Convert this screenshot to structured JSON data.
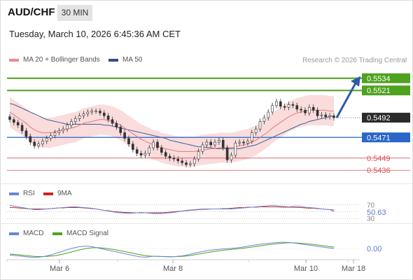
{
  "header": {
    "pair": "AUD/CHF",
    "timeframe": "30 MIN",
    "datetime": "Tuesday, March 10, 2026 6:45:36 AM CET"
  },
  "legend": {
    "ma20": "MA 20 + Bollinger Bands",
    "ma50": "MA 50",
    "rsi": "RSI",
    "ma9": "9MA",
    "macd": "MACD",
    "macd_signal": "MACD Signal"
  },
  "copyright": "Research © 2026 Trading Central",
  "colors": {
    "up": "#2e8b57",
    "down": "#c0392b",
    "candle": "#333333",
    "bollinger_fill": "#f9d6d6",
    "ma20": "#e07a7a",
    "ma50": "#3b5f9c",
    "resistance": "#4ea21f",
    "support": "#2a65c7",
    "minor_level": "#d9545d",
    "price": "#2b2b2b",
    "arrow": "#2e5aa8"
  },
  "chart_data": [
    {
      "type": "candlestick",
      "x_ticks": [
        "Mar 6",
        "Mar 8",
        "Mar 10",
        "Mar 18"
      ],
      "ylim": [
        0.5425,
        0.5545
      ],
      "levels": [
        {
          "value": 0.5534,
          "label": "0.5534",
          "kind": "resistance"
        },
        {
          "value": 0.5521,
          "label": "0.5521",
          "kind": "resistance"
        },
        {
          "value": 0.5471,
          "label": "0.5471",
          "kind": "support"
        },
        {
          "value": 0.5449,
          "label": "0.5449",
          "kind": "minor"
        },
        {
          "value": 0.5436,
          "label": "0.5436",
          "kind": "minor"
        }
      ],
      "last_price": {
        "value": 0.5492,
        "label": "0.5492"
      },
      "close": [
        0.549,
        0.5487,
        0.5484,
        0.5478,
        0.5472,
        0.5466,
        0.5462,
        0.5464,
        0.5467,
        0.547,
        0.5473,
        0.5476,
        0.5478,
        0.548,
        0.5484,
        0.5488,
        0.5491,
        0.5494,
        0.5496,
        0.5498,
        0.5499,
        0.5499,
        0.5497,
        0.5494,
        0.549,
        0.5486,
        0.5482,
        0.5476,
        0.547,
        0.5464,
        0.5458,
        0.5454,
        0.5452,
        0.5454,
        0.546,
        0.5466,
        0.546,
        0.5455,
        0.5451,
        0.5449,
        0.5448,
        0.5446,
        0.5444,
        0.5442,
        0.5443,
        0.5448,
        0.5456,
        0.5463,
        0.5466,
        0.5463,
        0.5466,
        0.5468,
        0.546,
        0.5447,
        0.5452,
        0.5465,
        0.5466,
        0.5465,
        0.5467,
        0.5476,
        0.548,
        0.5488,
        0.5492,
        0.5498,
        0.5505,
        0.5509,
        0.5504,
        0.5503,
        0.5506,
        0.5505,
        0.5501,
        0.55,
        0.5497,
        0.5503,
        0.55,
        0.5494,
        0.5495,
        0.5493,
        0.5494,
        0.5492
      ],
      "ma20": [
        0.5498,
        0.5495,
        0.5492,
        0.5489,
        0.5486,
        0.5482,
        0.5479,
        0.5477,
        0.5476,
        0.5476,
        0.5476,
        0.5477,
        0.5478,
        0.5479,
        0.548,
        0.5481,
        0.5482,
        0.5484,
        0.5486,
        0.5487,
        0.5488,
        0.5489,
        0.549,
        0.549,
        0.5489,
        0.5488,
        0.5486,
        0.5484,
        0.5481,
        0.5478,
        0.5475,
        0.5472,
        0.5469,
        0.5467,
        0.5465,
        0.5463,
        0.5462,
        0.546,
        0.5459,
        0.5458,
        0.5457,
        0.5456,
        0.5456,
        0.5456,
        0.5456,
        0.5456,
        0.5457,
        0.5458,
        0.5458,
        0.5459,
        0.5459,
        0.546,
        0.546,
        0.546,
        0.546,
        0.5461,
        0.5462,
        0.5463,
        0.5464,
        0.5466,
        0.5468,
        0.5471,
        0.5474,
        0.5477,
        0.5481,
        0.5484,
        0.5487,
        0.549,
        0.5493,
        0.5495,
        0.5497,
        0.5498,
        0.5499,
        0.55,
        0.55,
        0.55,
        0.55,
        0.55,
        0.5499,
        0.5499
      ],
      "ma50": [
        0.5507,
        0.5506,
        0.5504,
        0.5502,
        0.55,
        0.5498,
        0.5496,
        0.5494,
        0.5492,
        0.549,
        0.5489,
        0.5488,
        0.5487,
        0.5486,
        0.5485,
        0.5485,
        0.5485,
        0.5485,
        0.5485,
        0.5485,
        0.5485,
        0.5485,
        0.5485,
        0.5484,
        0.5484,
        0.5483,
        0.5482,
        0.5481,
        0.548,
        0.5479,
        0.5478,
        0.5477,
        0.5476,
        0.5475,
        0.5474,
        0.5473,
        0.5472,
        0.5471,
        0.547,
        0.5468,
        0.5467,
        0.5466,
        0.5465,
        0.5464,
        0.5463,
        0.5462,
        0.5461,
        0.5461,
        0.546,
        0.546,
        0.5459,
        0.5459,
        0.5459,
        0.5459,
        0.5459,
        0.5459,
        0.5459,
        0.546,
        0.5461,
        0.5462,
        0.5463,
        0.5465,
        0.5467,
        0.5469,
        0.5471,
        0.5473,
        0.5475,
        0.5477,
        0.5479,
        0.5481,
        0.5483,
        0.5485,
        0.5486,
        0.5488,
        0.5489,
        0.549,
        0.5491,
        0.5492,
        0.5493,
        0.5494
      ],
      "bollinger_width": 0.0016,
      "forecast_arrow": {
        "from": 0.5492,
        "to": 0.5534
      }
    },
    {
      "type": "line",
      "name": "RSI",
      "levels": [
        30,
        50,
        70
      ],
      "value_label": "50.63",
      "ylim": [
        25,
        75
      ],
      "rsi": [
        68,
        66,
        64,
        62,
        60,
        58,
        56,
        56,
        57,
        58,
        59,
        60,
        61,
        62,
        63,
        64,
        64,
        63,
        62,
        61,
        60,
        58,
        56,
        54,
        52,
        50,
        48,
        47,
        46,
        45,
        46,
        47,
        48,
        47,
        46,
        45,
        45,
        45,
        46,
        47,
        48,
        50,
        52,
        54,
        55,
        56,
        57,
        58,
        58,
        58,
        58,
        58,
        58,
        58,
        58,
        59,
        60,
        61,
        62,
        63,
        64,
        65,
        66,
        67,
        68,
        67,
        66,
        65,
        64,
        65,
        66,
        65,
        63,
        62,
        61,
        60,
        58,
        57,
        56,
        51
      ],
      "ma9": [
        62,
        62,
        61,
        60,
        59,
        58,
        58,
        58,
        58,
        58,
        59,
        60,
        61,
        61,
        62,
        62,
        62,
        62,
        61,
        60,
        59,
        58,
        56,
        54,
        53,
        51,
        50,
        49,
        48,
        48,
        47,
        47,
        47,
        47,
        47,
        47,
        47,
        47,
        48,
        49,
        50,
        51,
        52,
        53,
        54,
        55,
        56,
        57,
        57,
        58,
        58,
        58,
        59,
        59,
        60,
        61,
        62,
        62,
        63,
        63,
        63,
        64,
        64,
        64,
        64,
        64,
        63,
        63,
        63,
        63,
        62,
        62,
        61,
        60,
        60,
        59,
        58,
        57,
        56,
        55
      ]
    },
    {
      "type": "line",
      "name": "MACD",
      "value_label": "0.00",
      "ylim": [
        -1,
        1
      ],
      "macd": [
        -0.7,
        -0.75,
        -0.8,
        -0.85,
        -0.9,
        -0.95,
        -0.98,
        -0.95,
        -0.9,
        -0.8,
        -0.7,
        -0.55,
        -0.4,
        -0.25,
        -0.1,
        0.05,
        0.15,
        0.25,
        0.3,
        0.3,
        0.25,
        0.15,
        0.05,
        -0.05,
        -0.15,
        -0.25,
        -0.35,
        -0.45,
        -0.55,
        -0.65,
        -0.75,
        -0.85,
        -0.92,
        -0.95,
        -0.9,
        -0.85,
        -0.85,
        -0.88,
        -0.9,
        -0.92,
        -0.9,
        -0.85,
        -0.8,
        -0.72,
        -0.62,
        -0.5,
        -0.4,
        -0.3,
        -0.22,
        -0.15,
        -0.1,
        -0.05,
        0.0,
        0.02,
        0.05,
        0.1,
        0.15,
        0.22,
        0.3,
        0.38,
        0.45,
        0.52,
        0.58,
        0.63,
        0.68,
        0.72,
        0.75,
        0.75,
        0.72,
        0.68,
        0.62,
        0.55,
        0.48,
        0.42,
        0.35,
        0.28,
        0.22,
        0.15,
        0.1,
        0.05
      ],
      "signal": [
        -0.6,
        -0.63,
        -0.67,
        -0.72,
        -0.77,
        -0.82,
        -0.86,
        -0.88,
        -0.88,
        -0.86,
        -0.83,
        -0.78,
        -0.7,
        -0.6,
        -0.48,
        -0.36,
        -0.24,
        -0.12,
        -0.02,
        0.06,
        0.12,
        0.14,
        0.12,
        0.08,
        0.02,
        -0.05,
        -0.13,
        -0.22,
        -0.31,
        -0.4,
        -0.5,
        -0.6,
        -0.69,
        -0.77,
        -0.82,
        -0.85,
        -0.86,
        -0.87,
        -0.88,
        -0.89,
        -0.89,
        -0.88,
        -0.86,
        -0.82,
        -0.76,
        -0.68,
        -0.6,
        -0.52,
        -0.44,
        -0.36,
        -0.29,
        -0.22,
        -0.16,
        -0.11,
        -0.06,
        -0.02,
        0.03,
        0.08,
        0.14,
        0.2,
        0.27,
        0.34,
        0.41,
        0.47,
        0.53,
        0.58,
        0.63,
        0.67,
        0.69,
        0.69,
        0.67,
        0.64,
        0.6,
        0.55,
        0.5,
        0.44,
        0.38,
        0.32,
        0.26,
        0.2
      ]
    }
  ]
}
